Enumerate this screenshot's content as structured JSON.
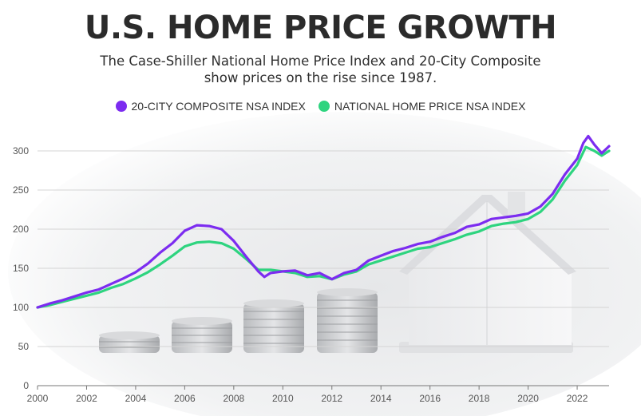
{
  "header": {
    "title": "U.S. HOME PRICE GROWTH",
    "subtitle_line1": "The Case-Shiller National Home Price Index and 20-City Composite",
    "subtitle_line2": "show prices on the rise since 1987."
  },
  "colors": {
    "series_20city": "#7c2cf0",
    "series_national": "#2ed47f",
    "grid": "#d4d4d4",
    "axis": "#777777"
  },
  "chart_data": {
    "type": "line",
    "title": "U.S. HOME PRICE GROWTH",
    "xlabel": "",
    "ylabel": "",
    "xlim": [
      2000,
      2023.3
    ],
    "ylim": [
      0,
      300
    ],
    "x_ticks": [
      2000,
      2002,
      2004,
      2006,
      2008,
      2010,
      2012,
      2014,
      2016,
      2018,
      2020,
      2022
    ],
    "y_ticks": [
      0,
      50,
      100,
      150,
      200,
      250,
      300
    ],
    "grid": true,
    "legend_position": "top-center",
    "series": [
      {
        "name": "20-CITY COMPOSITE NSA INDEX",
        "points": [
          [
            2000,
            100
          ],
          [
            2000.5,
            105
          ],
          [
            2001,
            109
          ],
          [
            2001.5,
            114
          ],
          [
            2002,
            119
          ],
          [
            2002.5,
            123
          ],
          [
            2003,
            130
          ],
          [
            2003.5,
            137
          ],
          [
            2004,
            145
          ],
          [
            2004.5,
            156
          ],
          [
            2005,
            170
          ],
          [
            2005.5,
            182
          ],
          [
            2006,
            198
          ],
          [
            2006.5,
            205
          ],
          [
            2007,
            204
          ],
          [
            2007.5,
            200
          ],
          [
            2008,
            185
          ],
          [
            2008.5,
            165
          ],
          [
            2009,
            146
          ],
          [
            2009.25,
            139
          ],
          [
            2009.5,
            144
          ],
          [
            2010,
            146
          ],
          [
            2010.5,
            147
          ],
          [
            2011,
            141
          ],
          [
            2011.5,
            144
          ],
          [
            2012,
            136
          ],
          [
            2012.5,
            144
          ],
          [
            2013,
            148
          ],
          [
            2013.5,
            160
          ],
          [
            2014,
            166
          ],
          [
            2014.5,
            172
          ],
          [
            2015,
            176
          ],
          [
            2015.5,
            181
          ],
          [
            2016,
            184
          ],
          [
            2016.5,
            190
          ],
          [
            2017,
            195
          ],
          [
            2017.5,
            203
          ],
          [
            2018,
            206
          ],
          [
            2018.5,
            213
          ],
          [
            2019,
            215
          ],
          [
            2019.5,
            217
          ],
          [
            2020,
            220
          ],
          [
            2020.5,
            229
          ],
          [
            2021,
            245
          ],
          [
            2021.5,
            270
          ],
          [
            2022,
            290
          ],
          [
            2022.25,
            310
          ],
          [
            2022.45,
            319
          ],
          [
            2022.7,
            308
          ],
          [
            2023,
            297
          ],
          [
            2023.3,
            306
          ]
        ]
      },
      {
        "name": "NATIONAL HOME PRICE NSA INDEX",
        "points": [
          [
            2000,
            100
          ],
          [
            2000.5,
            103
          ],
          [
            2001,
            107
          ],
          [
            2001.5,
            111
          ],
          [
            2002,
            115
          ],
          [
            2002.5,
            119
          ],
          [
            2003,
            125
          ],
          [
            2003.5,
            130
          ],
          [
            2004,
            137
          ],
          [
            2004.5,
            145
          ],
          [
            2005,
            155
          ],
          [
            2005.5,
            166
          ],
          [
            2006,
            178
          ],
          [
            2006.5,
            183
          ],
          [
            2007,
            184
          ],
          [
            2007.5,
            182
          ],
          [
            2008,
            175
          ],
          [
            2008.5,
            162
          ],
          [
            2009,
            148
          ],
          [
            2009.5,
            148
          ],
          [
            2010,
            146
          ],
          [
            2010.5,
            144
          ],
          [
            2011,
            139
          ],
          [
            2011.5,
            140
          ],
          [
            2012,
            136
          ],
          [
            2012.5,
            142
          ],
          [
            2013,
            146
          ],
          [
            2013.5,
            155
          ],
          [
            2014,
            160
          ],
          [
            2014.5,
            165
          ],
          [
            2015,
            170
          ],
          [
            2015.5,
            175
          ],
          [
            2016,
            177
          ],
          [
            2016.5,
            182
          ],
          [
            2017,
            187
          ],
          [
            2017.5,
            193
          ],
          [
            2018,
            197
          ],
          [
            2018.5,
            204
          ],
          [
            2019,
            207
          ],
          [
            2019.5,
            209
          ],
          [
            2020,
            213
          ],
          [
            2020.5,
            222
          ],
          [
            2021,
            238
          ],
          [
            2021.5,
            262
          ],
          [
            2022,
            282
          ],
          [
            2022.35,
            305
          ],
          [
            2022.7,
            300
          ],
          [
            2023,
            294
          ],
          [
            2023.3,
            300
          ]
        ]
      }
    ]
  }
}
